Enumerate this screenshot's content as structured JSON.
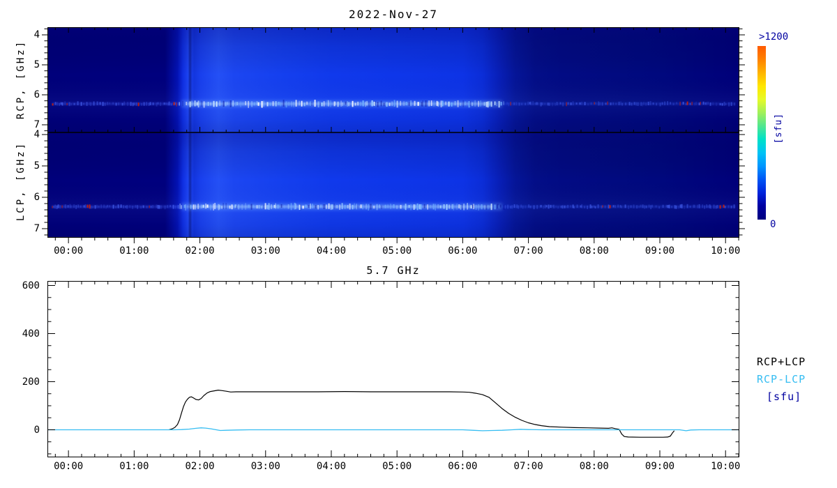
{
  "title": "2022-Nov-27",
  "colors": {
    "accent_cyan": "#35bdf2",
    "navy_text": "#0000a0",
    "line_black": "#000000",
    "night_blue": "#000080",
    "day_blue": "#1039ec"
  },
  "spectrogram": {
    "left_axis_top": "RCP, [GHz]",
    "left_axis_bottom": "LCP, [GHz]",
    "freq_ticks": [
      "4",
      "5",
      "6",
      "7"
    ],
    "time_ticks": [
      "00:00",
      "01:00",
      "02:00",
      "03:00",
      "04:00",
      "05:00",
      "06:00",
      "07:00",
      "08:00",
      "09:00",
      "10:00"
    ],
    "colorbar": {
      "top_label": ">1200",
      "unit_label": "[sfu]",
      "bottom_label": "0"
    }
  },
  "timeseries": {
    "title": "5.7 GHz",
    "y_ticks": [
      "0",
      "200",
      "400",
      "600"
    ],
    "time_ticks": [
      "00:00",
      "01:00",
      "02:00",
      "03:00",
      "04:00",
      "05:00",
      "06:00",
      "07:00",
      "08:00",
      "09:00",
      "10:00"
    ],
    "legend": [
      {
        "label": "RCP+LCP",
        "color": "#000000"
      },
      {
        "label": "RCP-LCP",
        "color": "#35bdf2"
      },
      {
        "label": "[sfu]",
        "color": "#0000a0"
      }
    ]
  },
  "chart_data": [
    {
      "type": "heatmap",
      "title": "2022-Nov-27",
      "panels": [
        {
          "name": "RCP",
          "ylabel": "RCP, [GHz]",
          "freq_ticks_ghz": [
            4,
            5,
            6,
            7
          ]
        },
        {
          "name": "LCP",
          "ylabel": "LCP, [GHz]",
          "freq_ticks_ghz": [
            4,
            5,
            6,
            7
          ]
        }
      ],
      "x_tick_labels": [
        "00:00",
        "01:00",
        "02:00",
        "03:00",
        "04:00",
        "05:00",
        "06:00",
        "07:00",
        "08:00",
        "09:00",
        "10:00"
      ],
      "x_range_hours": [
        -0.32,
        10.21
      ],
      "freq_range_ghz": [
        3.75,
        7.26
      ],
      "colorbar": {
        "bottom_value": 0,
        "top_label": ">1200",
        "units": "[sfu]",
        "colormap_top_to_bottom": [
          "#ff5a00",
          "#ff8200",
          "#ffb400",
          "#ffe600",
          "#e6fa28",
          "#a0f05a",
          "#50e691",
          "#00e1c8",
          "#00c3f5",
          "#0096ff",
          "#0055f5",
          "#0023dc",
          "#0000a0",
          "#000080"
        ]
      },
      "features": {
        "night_navy_until_hour": 1.68,
        "sunrise_hour": 1.75,
        "bright_day_until_hour": 6.4,
        "sunset_fade_hours": [
          6.4,
          7.3
        ],
        "interference_band_ghz": 6.3,
        "interference_band_description": "horizontal speckled RFI band near 6.3 GHz: bright white-blue dashes during daytime, faint blue dashes with sparse red spikes before sunrise and after sunset"
      }
    },
    {
      "type": "line",
      "title": "5.7 GHz",
      "xlabel": "",
      "ylabel": "",
      "x_range_hours": [
        -0.32,
        10.21
      ],
      "ylim": [
        -114,
        619
      ],
      "y_major_ticks": [
        0,
        200,
        400,
        600
      ],
      "legend_position": "right-outside",
      "series": [
        {
          "name": "RCP+LCP",
          "color": "#000000",
          "points": [
            [
              1.53,
              0
            ],
            [
              1.58,
              4
            ],
            [
              1.62,
              10
            ],
            [
              1.66,
              22
            ],
            [
              1.69,
              42
            ],
            [
              1.72,
              70
            ],
            [
              1.75,
              96
            ],
            [
              1.78,
              115
            ],
            [
              1.81,
              127
            ],
            [
              1.84,
              135
            ],
            [
              1.87,
              137
            ],
            [
              1.9,
              133
            ],
            [
              1.94,
              126
            ],
            [
              1.98,
              124
            ],
            [
              2.02,
              130
            ],
            [
              2.06,
              142
            ],
            [
              2.11,
              153
            ],
            [
              2.16,
              159
            ],
            [
              2.22,
              162
            ],
            [
              2.28,
              165
            ],
            [
              2.34,
              163
            ],
            [
              2.41,
              160
            ],
            [
              2.47,
              157
            ],
            [
              2.55,
              158
            ],
            [
              2.7,
              158
            ],
            [
              3.0,
              158
            ],
            [
              3.4,
              158
            ],
            [
              3.8,
              158
            ],
            [
              4.2,
              159
            ],
            [
              4.6,
              158
            ],
            [
              5.0,
              158
            ],
            [
              5.4,
              158
            ],
            [
              5.8,
              158
            ],
            [
              6.0,
              157
            ],
            [
              6.1,
              156
            ],
            [
              6.2,
              152
            ],
            [
              6.3,
              146
            ],
            [
              6.4,
              135
            ],
            [
              6.5,
              112
            ],
            [
              6.6,
              88
            ],
            [
              6.7,
              68
            ],
            [
              6.8,
              52
            ],
            [
              6.9,
              39
            ],
            [
              7.0,
              29
            ],
            [
              7.1,
              22
            ],
            [
              7.2,
              17
            ],
            [
              7.32,
              13
            ],
            [
              7.5,
              11
            ],
            [
              7.7,
              9
            ],
            [
              7.9,
              8
            ],
            [
              8.1,
              7
            ],
            [
              8.22,
              6
            ],
            [
              8.27,
              8
            ],
            [
              8.32,
              5
            ],
            [
              8.38,
              2
            ],
            [
              8.42,
              -18
            ],
            [
              8.46,
              -28
            ],
            [
              8.52,
              -30
            ],
            [
              8.7,
              -31
            ],
            [
              8.9,
              -31
            ],
            [
              9.05,
              -31
            ],
            [
              9.12,
              -30
            ],
            [
              9.16,
              -26
            ],
            [
              9.19,
              -14
            ],
            [
              9.22,
              -4
            ]
          ]
        },
        {
          "name": "RCP-LCP",
          "color": "#35bdf2",
          "points": [
            [
              -0.32,
              0
            ],
            [
              0.5,
              0
            ],
            [
              1.4,
              0
            ],
            [
              1.6,
              0
            ],
            [
              1.72,
              1
            ],
            [
              1.84,
              3
            ],
            [
              1.94,
              6
            ],
            [
              2.02,
              8
            ],
            [
              2.09,
              7
            ],
            [
              2.17,
              4
            ],
            [
              2.25,
              0
            ],
            [
              2.31,
              -3
            ],
            [
              2.4,
              -2
            ],
            [
              2.55,
              -1
            ],
            [
              2.75,
              0
            ],
            [
              3.5,
              0
            ],
            [
              4.5,
              0
            ],
            [
              5.5,
              0
            ],
            [
              6.0,
              0
            ],
            [
              6.15,
              -2
            ],
            [
              6.3,
              -4
            ],
            [
              6.45,
              -3
            ],
            [
              6.6,
              -2
            ],
            [
              6.75,
              0
            ],
            [
              6.88,
              2
            ],
            [
              7.0,
              1
            ],
            [
              7.2,
              0
            ],
            [
              8.5,
              0
            ],
            [
              9.3,
              0
            ],
            [
              9.4,
              -4
            ],
            [
              9.47,
              -1
            ],
            [
              9.6,
              0
            ],
            [
              10.21,
              0
            ]
          ]
        }
      ]
    }
  ]
}
